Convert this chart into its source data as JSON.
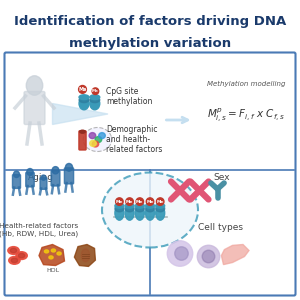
{
  "title_line1": "Identification of factors driving DNA",
  "title_line2": "methylation variation",
  "title_color": "#1a3a6b",
  "title_fontsize": 9.5,
  "bg_color": "#ffffff",
  "box_color": "#4a7ab5",
  "label_aging": "Aging",
  "label_sex": "Sex",
  "label_health": "Health-related factors\n(Hb, RDW, HDL, Urea)",
  "label_celltypes": "Cell types",
  "label_cpg": "CpG site\nmethylation",
  "label_demo": "Demographic\nand health-\nrelated factors",
  "label_modeling": "Methylation modelling",
  "formula": "$M^{p}_{i,s} = F_{i,f}$ x $C_{f,s}$",
  "teal_color": "#3a9ab8",
  "teal_dark": "#2e7d9e",
  "red_color": "#c0392b",
  "pink_color": "#e8547a",
  "light_blue": "#c5dff0",
  "gray_human": "#c8d0d8",
  "label_hdl": "HDL",
  "family_color": "#2e6da4",
  "chrom_pink": "#e05575",
  "chrom_blue": "#4a90a4"
}
